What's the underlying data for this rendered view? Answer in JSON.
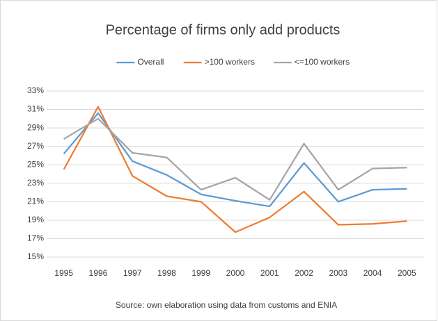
{
  "chart_data": {
    "type": "line",
    "title": "Percentage of firms only add products",
    "note": "Source: own elaboration using data from customs and ENIA",
    "categories": [
      "1995",
      "1996",
      "1997",
      "1998",
      "1999",
      "2000",
      "2001",
      "2002",
      "2003",
      "2004",
      "2005"
    ],
    "series": [
      {
        "name": "Overall",
        "color": "#5b9bd5",
        "values": [
          26.2,
          30.6,
          25.4,
          23.9,
          21.8,
          21.1,
          20.5,
          25.2,
          21.0,
          22.3,
          22.4
        ]
      },
      {
        "name": ">100 workers",
        "color": "#ed7d31",
        "values": [
          24.5,
          31.3,
          23.8,
          21.6,
          21.0,
          17.7,
          19.3,
          22.1,
          18.5,
          18.6,
          18.9
        ]
      },
      {
        "name": "<=100 workers",
        "color": "#a5a5a5",
        "values": [
          27.8,
          30.0,
          26.3,
          25.8,
          22.3,
          23.6,
          21.2,
          27.3,
          22.3,
          24.6,
          24.7
        ]
      }
    ],
    "ylim": [
      15,
      33
    ],
    "yticks": [
      {
        "value": 15,
        "label": "15%"
      },
      {
        "value": 17,
        "label": "17%"
      },
      {
        "value": 19,
        "label": "19%"
      },
      {
        "value": 21,
        "label": "21%"
      },
      {
        "value": 23,
        "label": "23%"
      },
      {
        "value": 25,
        "label": "25%"
      },
      {
        "value": 27,
        "label": "27%"
      },
      {
        "value": 29,
        "label": "29%"
      },
      {
        "value": 31,
        "label": "31%"
      },
      {
        "value": 33,
        "label": "33%"
      }
    ],
    "grid": true,
    "legend": "top"
  }
}
